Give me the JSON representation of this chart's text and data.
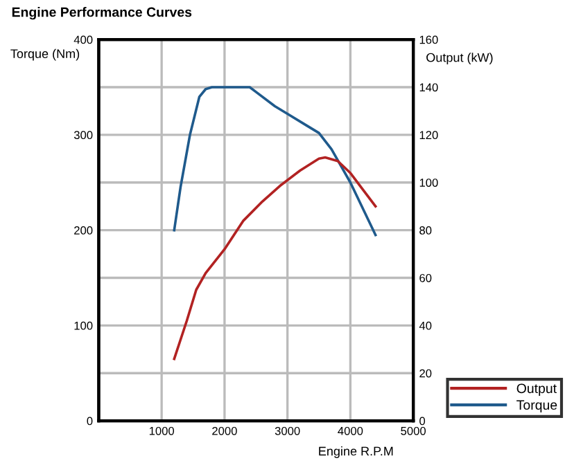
{
  "chart_data": {
    "type": "line",
    "title": "Engine Performance Curves",
    "xlabel": "Engine R.P.M",
    "ylabel": "Torque (Nm)",
    "y2label": "Output (kW)",
    "xlim": [
      0,
      5000
    ],
    "xticks": [
      {
        "value": 0,
        "label": null
      },
      1000,
      2000,
      3000,
      4000,
      5000
    ],
    "ylim": [
      0,
      400
    ],
    "yticks": [
      0,
      {
        "value": 50,
        "label": null
      },
      100,
      {
        "value": 150,
        "label": null
      },
      200,
      {
        "value": 250,
        "label": null
      },
      300,
      {
        "value": 350,
        "label": null
      },
      400
    ],
    "y2lim": [
      0,
      160
    ],
    "y2ticks": [
      0,
      20,
      40,
      60,
      80,
      100,
      120,
      140,
      160
    ],
    "grid": true,
    "legend": "bottom right",
    "marker": "none",
    "line_style": "solid",
    "series": [
      {
        "name": "Output",
        "color": "#b22222",
        "axis": "y2",
        "x": [
          1200,
          1400,
          1550,
          1700,
          2000,
          2300,
          2600,
          2900,
          3200,
          3500,
          3600,
          3800,
          4000,
          4200,
          4400
        ],
        "values": [
          26,
          42,
          55,
          62,
          72,
          84,
          92,
          99,
          105,
          110,
          110.5,
          109,
          104,
          97,
          90
        ]
      },
      {
        "name": "Torque",
        "color": "#1f5a8c",
        "axis": "y",
        "x": [
          1200,
          1300,
          1450,
          1600,
          1700,
          1800,
          2400,
          2500,
          2800,
          3000,
          3300,
          3500,
          3700,
          4000,
          4400
        ],
        "values": [
          200,
          245,
          300,
          340,
          348,
          350,
          350,
          345,
          330,
          322,
          310,
          302,
          285,
          250,
          195
        ]
      }
    ]
  }
}
